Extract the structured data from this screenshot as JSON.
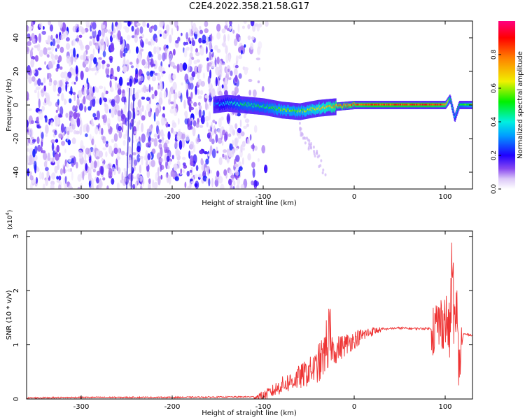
{
  "title": "C2E4.2022.358.21.58.G17",
  "chart_data": [
    {
      "type": "heatmap",
      "title": "",
      "xlabel": "Height of straight line (km)",
      "ylabel": "Frequency (Hz)",
      "xlim": [
        -360,
        130
      ],
      "ylim": [
        -50,
        50
      ],
      "xticks": [
        -300,
        -200,
        -100,
        0,
        100
      ],
      "yticks": [
        -40,
        -20,
        0,
        20,
        40
      ],
      "colorbar": {
        "label": "Normalized spectral amplitude",
        "range": [
          0,
          1
        ],
        "ticks": [
          "0.0",
          "0.2",
          "0.4",
          "0.6",
          "0.8"
        ],
        "colors": [
          "#ffffff",
          "#dcc8f8",
          "#8a4af0",
          "#6a0ef0",
          "#2000ff",
          "#00a0ff",
          "#00f0e0",
          "#00f000",
          "#f0f000",
          "#ff8000",
          "#ff0000",
          "#ff0080"
        ]
      },
      "noise_region_km": [
        -360,
        -110
      ],
      "signal_onset_km": -155,
      "signal_trace": {
        "x": [
          -155,
          -140,
          -120,
          -100,
          -80,
          -60,
          -40,
          -20,
          0,
          20,
          40,
          60,
          80,
          100,
          105,
          110,
          115,
          130
        ],
        "y_hz": [
          0,
          1,
          0,
          -1,
          -3,
          -4,
          -2,
          -1,
          0,
          0,
          0,
          0,
          0,
          0,
          4,
          -8,
          0,
          0
        ],
        "amplitude": [
          0.3,
          0.4,
          0.5,
          0.5,
          0.6,
          0.6,
          0.7,
          0.8,
          0.85,
          0.9,
          0.9,
          0.9,
          0.9,
          0.85,
          0.5,
          0.4,
          0.5,
          0.6
        ]
      }
    },
    {
      "type": "line",
      "title": "",
      "xlabel": "Height of straight line (km)",
      "ylabel": "SNR (10 * v/v)",
      "y_exponent_label": "(x10",
      "y_exponent": "4",
      "xlim": [
        -360,
        130
      ],
      "ylim": [
        0,
        3.1
      ],
      "xticks": [
        -300,
        -200,
        -100,
        0,
        100
      ],
      "yticks": [
        0,
        1,
        2,
        3
      ],
      "line_color": "#ee3333",
      "series": [
        {
          "x": [
            -360,
            -300,
            -200,
            -110,
            -100,
            -90,
            -80,
            -70,
            -60,
            -50,
            -40,
            -35,
            -30,
            -25,
            -20,
            -10,
            0,
            10,
            20,
            30,
            40,
            50,
            60,
            70,
            80,
            85,
            90,
            95,
            100,
            105,
            108,
            110,
            113,
            115,
            120,
            130
          ],
          "y": [
            0.02,
            0.03,
            0.03,
            0.04,
            0.06,
            0.14,
            0.25,
            0.32,
            0.4,
            0.5,
            0.6,
            0.75,
            0.85,
            0.95,
            0.9,
            1.0,
            1.1,
            1.18,
            1.25,
            1.28,
            1.3,
            1.31,
            1.3,
            1.3,
            1.3,
            1.3,
            1.32,
            1.4,
            1.5,
            1.2,
            2.0,
            1.3,
            1.1,
            0.6,
            1.2,
            1.18
          ]
        }
      ]
    }
  ]
}
